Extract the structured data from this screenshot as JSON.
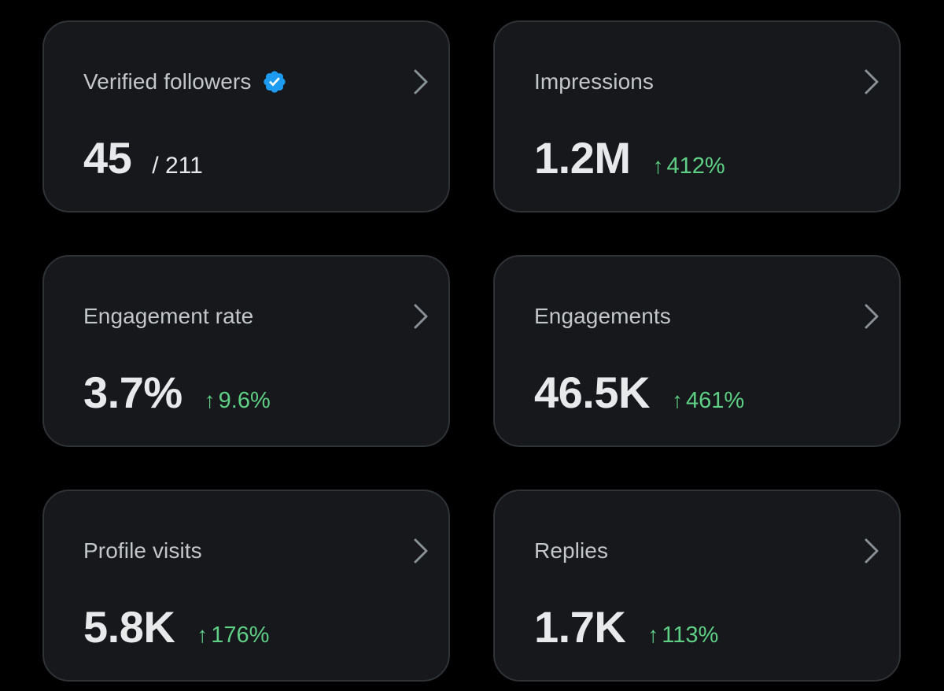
{
  "cards": [
    {
      "label": "Verified followers",
      "value": "45",
      "sub": "/ 211",
      "verified": true
    },
    {
      "label": "Impressions",
      "value": "1.2M",
      "change": "412%",
      "trend": "up"
    },
    {
      "label": "Engagement rate",
      "value": "3.7%",
      "change": "9.6%",
      "trend": "up"
    },
    {
      "label": "Engagements",
      "value": "46.5K",
      "change": "461%",
      "trend": "up"
    },
    {
      "label": "Profile visits",
      "value": "5.8K",
      "change": "176%",
      "trend": "up"
    },
    {
      "label": "Replies",
      "value": "1.7K",
      "change": "113%",
      "trend": "up"
    }
  ],
  "icons": {
    "verified": "verified-badge-icon",
    "chevron": "chevron-right-icon",
    "arrow": "arrow-up-icon"
  },
  "colors": {
    "background": "#000000",
    "card": "#16181c",
    "border": "#2f3336",
    "label": "#c4c7ca",
    "value": "#e7e9ea",
    "positive": "#5fcf85",
    "verified": "#1d9bf0",
    "chevron": "#8b9095"
  },
  "glyphs": {
    "arrow_up": "↑"
  }
}
